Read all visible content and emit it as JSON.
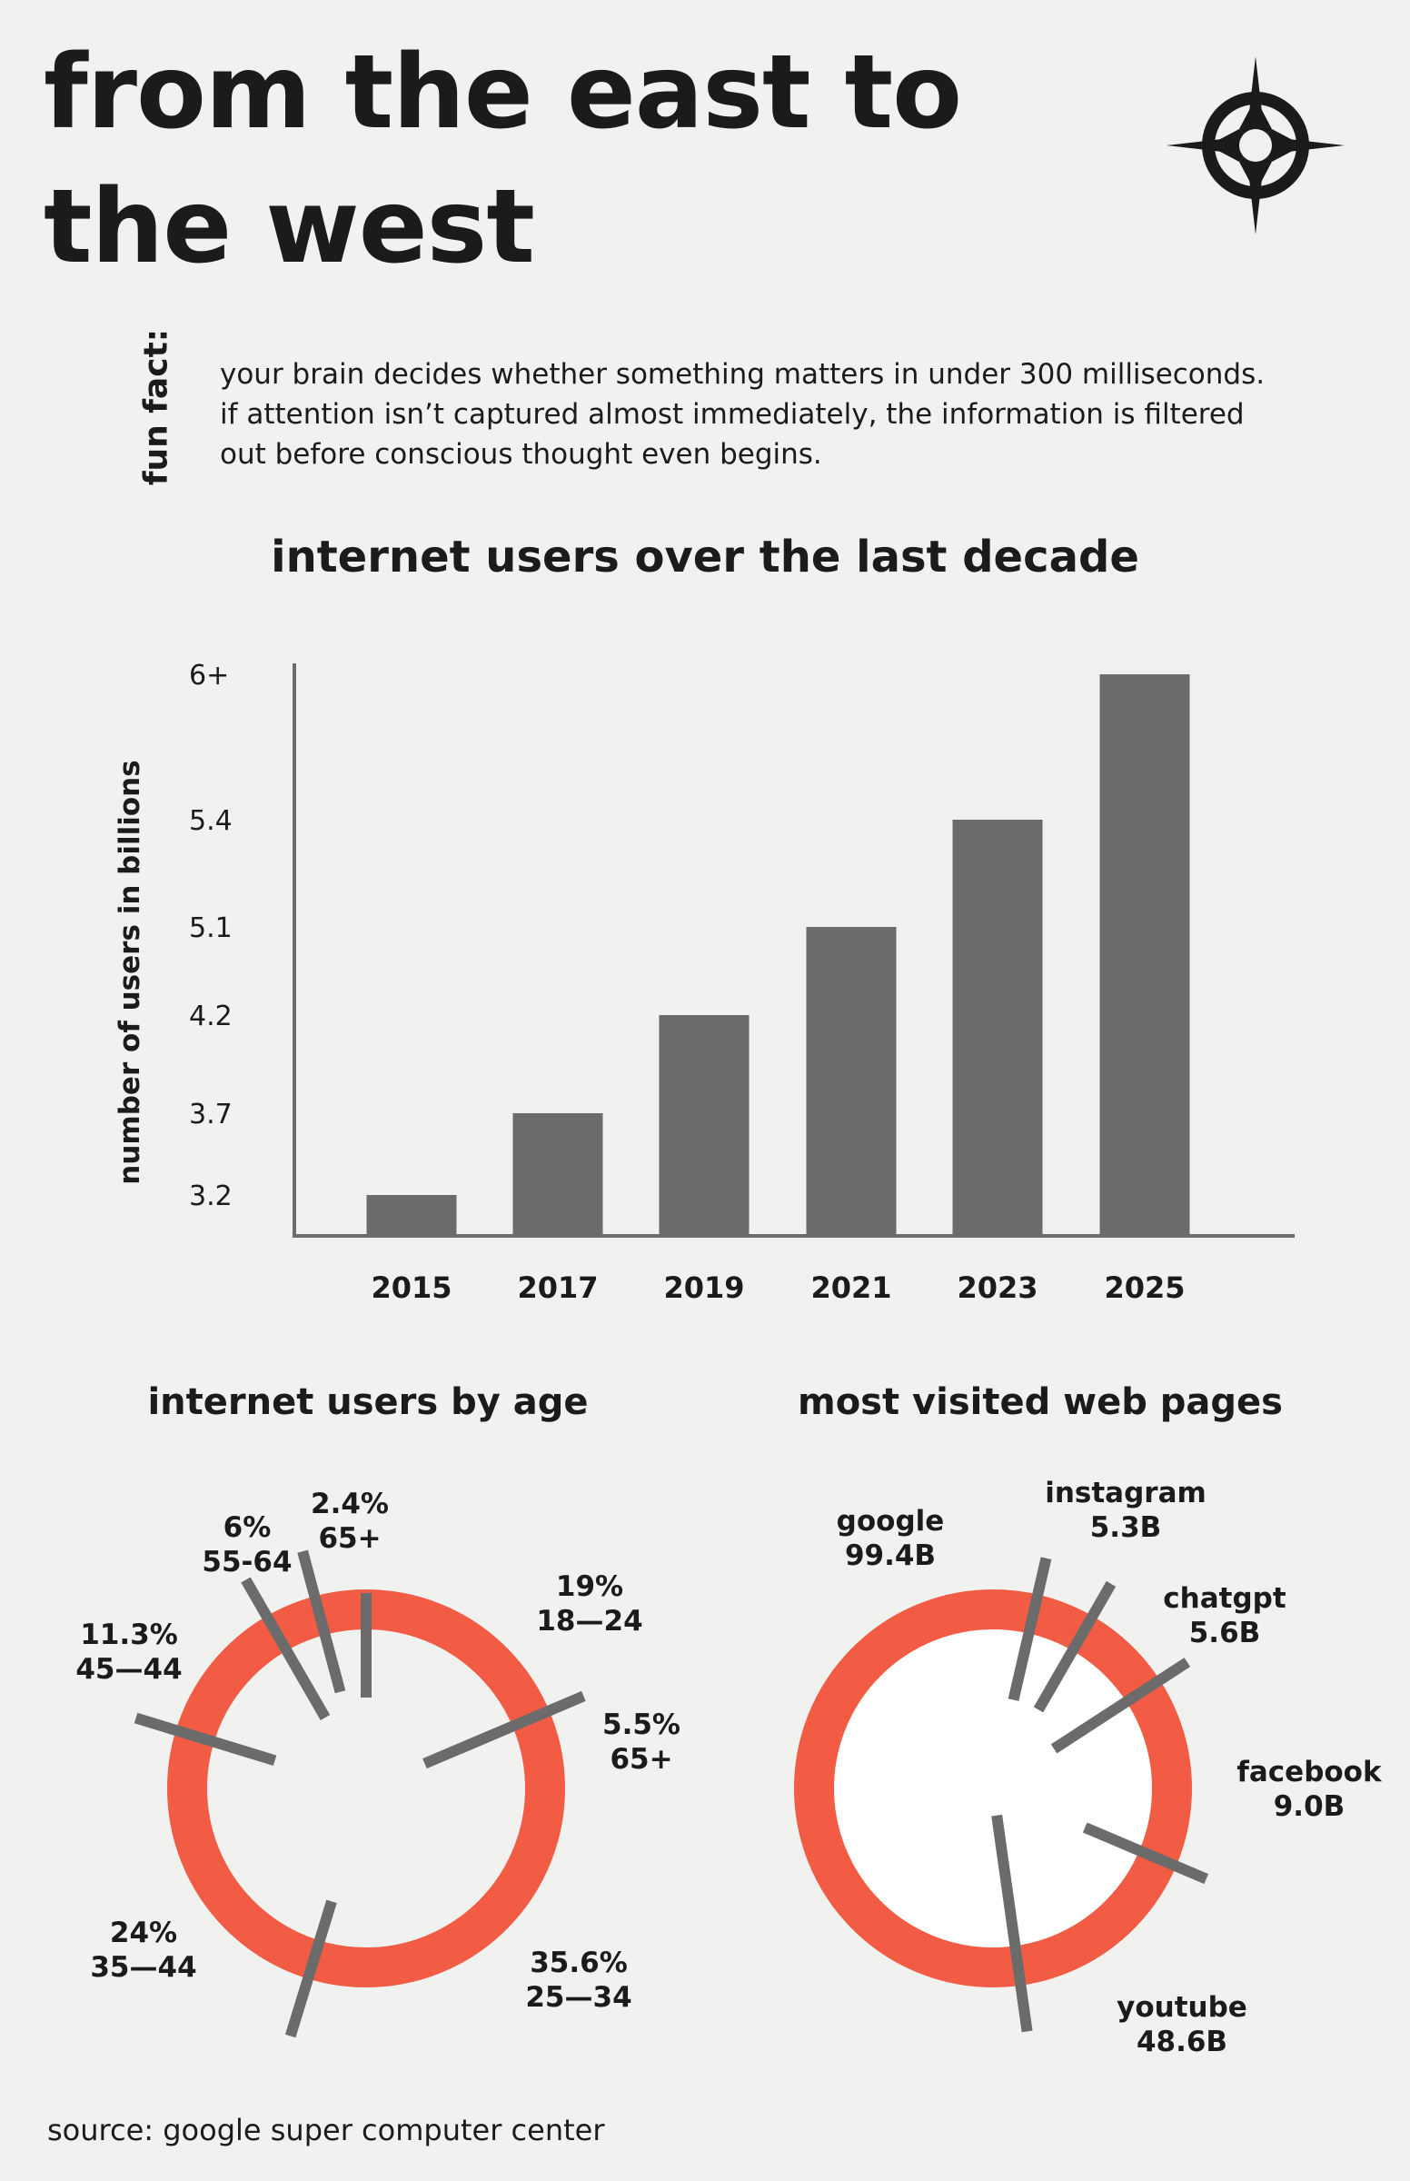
{
  "header": {
    "title_line1": "from the east to",
    "title_line2": "the west",
    "icon": "compass-rose-icon"
  },
  "fun_fact": {
    "label": "fun fact:",
    "line1": "your brain decides whether something matters in under 300 milliseconds.",
    "line2": "if attention isn’t captured almost immediately, the information is filtered",
    "line3": "out before conscious thought even begins."
  },
  "colors": {
    "background": "#f1f1f0",
    "bar": "#6b6b6b",
    "ring": "#f25c45",
    "spoke": "#6b6b6b",
    "text": "#1b1b1b"
  },
  "chart_data": [
    {
      "type": "bar",
      "title": "internet users over the last decade",
      "ylabel": "number of users in billions",
      "xlabel": "",
      "categories": [
        "2015",
        "2017",
        "2019",
        "2021",
        "2023",
        "2025"
      ],
      "values": [
        3.2,
        3.7,
        4.2,
        5.1,
        5.4,
        6.0
      ],
      "value_labels": [
        "3.2",
        "3.7",
        "4.2",
        "5.1",
        "5.4",
        "6+"
      ],
      "grid": false
    },
    {
      "type": "pie",
      "title": "internet users by age",
      "slices": [
        {
          "value": "2.4%",
          "label": "65+"
        },
        {
          "value": "19%",
          "label": "18—24"
        },
        {
          "value": "5.5%",
          "label": "65+"
        },
        {
          "value": "35.6%",
          "label": "25—34"
        },
        {
          "value": "24%",
          "label": "35—44"
        },
        {
          "value": "11.3%",
          "label": "45—44"
        },
        {
          "value": "6%",
          "label": "55-64"
        }
      ]
    },
    {
      "type": "pie",
      "title": "most visited web pages",
      "slices": [
        {
          "label": "instagram",
          "value": "5.3B"
        },
        {
          "label": "chatgpt",
          "value": "5.6B"
        },
        {
          "label": "facebook",
          "value": "9.0B"
        },
        {
          "label": "youtube",
          "value": "48.6B"
        },
        {
          "label": "google",
          "value": "99.4B"
        }
      ]
    }
  ],
  "footer": {
    "source": "source: google super computer center"
  }
}
